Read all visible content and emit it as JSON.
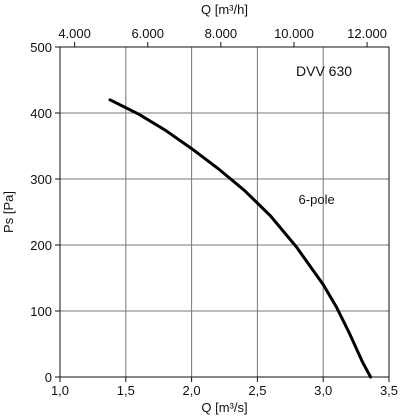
{
  "chart_data": {
    "type": "line",
    "model_label": "DVV 630",
    "xlabel": "Q [m³/s]",
    "x2label": "Q [m³/h]",
    "ylabel": "Ps [Pa]",
    "xlim": [
      1.0,
      3.5
    ],
    "ylim": [
      0,
      500
    ],
    "x2lim": [
      3600,
      12600
    ],
    "grid": true,
    "x_ticks": [
      1.0,
      1.5,
      2.0,
      2.5,
      3.0,
      3.5
    ],
    "x_tick_labels": [
      "1,0",
      "1,5",
      "2,0",
      "2,5",
      "3,0",
      "3,5"
    ],
    "y_ticks": [
      0,
      100,
      200,
      300,
      400,
      500
    ],
    "y_tick_labels": [
      "0",
      "100",
      "200",
      "300",
      "400",
      "500"
    ],
    "x2_ticks": [
      4000,
      6000,
      8000,
      10000,
      12000
    ],
    "x2_tick_labels": [
      "4.000",
      "6.000",
      "8.000",
      "10.000",
      "12.000"
    ],
    "series": [
      {
        "name": "6-pole",
        "color": "#000000",
        "x": [
          1.38,
          1.6,
          1.8,
          2.0,
          2.2,
          2.4,
          2.6,
          2.8,
          3.0,
          3.1,
          3.2,
          3.3,
          3.36
        ],
        "y": [
          420,
          398,
          374,
          346,
          316,
          283,
          244,
          196,
          140,
          106,
          66,
          22,
          0
        ],
        "label_at": [
          2.95,
          262
        ]
      }
    ]
  }
}
